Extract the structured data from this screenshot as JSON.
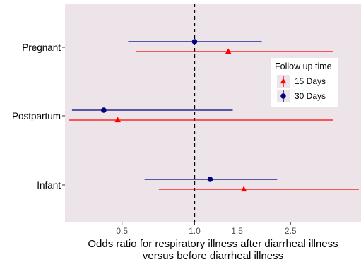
{
  "chart_data": {
    "type": "forest",
    "title": "",
    "xlabel_lines": [
      "Odds ratio for respiratory illness after diarrheal illness",
      "versus before diarrheal illness"
    ],
    "ylabel": "",
    "xscale": "log",
    "xlim": [
      0.29,
      4.9
    ],
    "x_ticks": [
      {
        "value": 0.5,
        "label": "0.5"
      },
      {
        "value": 1.0,
        "label": "1.0"
      },
      {
        "value": 1.5,
        "label": "1.5"
      },
      {
        "value": 2.5,
        "label": "2.5"
      }
    ],
    "reference_line": 1.0,
    "categories": [
      "Pregnant",
      "Postpartum",
      "Infant"
    ],
    "legend": {
      "title": "Follow up time",
      "position": "right"
    },
    "series": [
      {
        "name": "15 Days",
        "color": "#ff0000",
        "marker": "triangle",
        "points": [
          {
            "category": "Pregnant",
            "estimate": 1.38,
            "lower": 0.57,
            "upper": 3.75
          },
          {
            "category": "Postpartum",
            "estimate": 0.48,
            "lower": 0.3,
            "upper": 3.75
          },
          {
            "category": "Infant",
            "estimate": 1.6,
            "lower": 0.71,
            "upper": 4.8
          }
        ]
      },
      {
        "name": "30 Days",
        "color": "#000080",
        "marker": "circle",
        "points": [
          {
            "category": "Pregnant",
            "estimate": 1.0,
            "lower": 0.53,
            "upper": 1.9
          },
          {
            "category": "Postpartum",
            "estimate": 0.42,
            "lower": 0.31,
            "upper": 1.44
          },
          {
            "category": "Infant",
            "estimate": 1.16,
            "lower": 0.62,
            "upper": 2.2
          }
        ]
      }
    ]
  }
}
